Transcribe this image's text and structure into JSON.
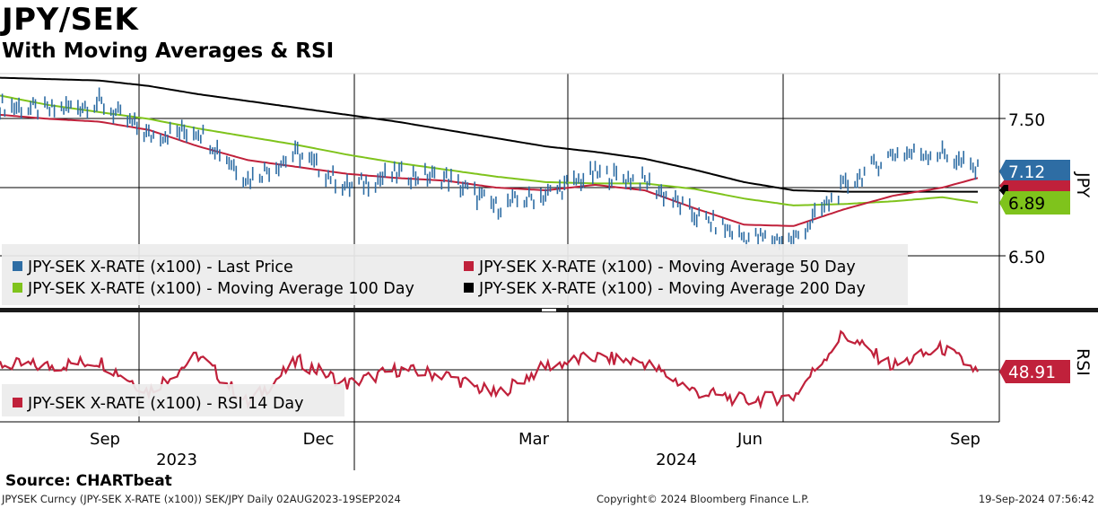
{
  "header": {
    "title": "JPY/SEK",
    "subtitle": "With Moving Averages & RSI"
  },
  "colors": {
    "last": "#2e6da4",
    "ma50": "#c0213b",
    "ma100": "#7fc31c",
    "ma200": "#000000",
    "rsi": "#c0213b"
  },
  "chart_data": [
    {
      "type": "line",
      "panel": "price",
      "y_axis_label": "JPY",
      "y_ticks": [
        6.5,
        7.5
      ],
      "y_tick_labels": [
        "6.50",
        "7.50"
      ],
      "ylim": [
        6.1,
        7.8
      ],
      "x": [
        "2023-08-02",
        "2023-08-23",
        "2023-09-13",
        "2023-10-04",
        "2023-10-25",
        "2023-11-15",
        "2023-12-06",
        "2023-12-27",
        "2024-01-17",
        "2024-02-07",
        "2024-02-28",
        "2024-03-20",
        "2024-04-10",
        "2024-05-01",
        "2024-05-22",
        "2024-06-12",
        "2024-07-03",
        "2024-07-24",
        "2024-08-14",
        "2024-09-04",
        "2024-09-19"
      ],
      "series": [
        {
          "name": "JPY-SEK X-RATE (x100) - Last Price",
          "key": "last",
          "values": [
            7.6,
            7.56,
            7.62,
            7.38,
            7.42,
            7.06,
            7.25,
            7.0,
            7.1,
            7.07,
            6.86,
            6.95,
            7.1,
            7.05,
            6.8,
            6.64,
            6.62,
            7.0,
            7.25,
            7.25,
            7.12
          ]
        },
        {
          "name": "JPY-SEK X-RATE (x100) - Moving Average 50 Day",
          "key": "ma50",
          "values": [
            7.53,
            7.5,
            7.48,
            7.42,
            7.3,
            7.2,
            7.15,
            7.1,
            7.07,
            7.05,
            7.0,
            6.98,
            7.02,
            6.98,
            6.85,
            6.73,
            6.72,
            6.84,
            6.94,
            7.0,
            7.07
          ]
        },
        {
          "name": "JPY-SEK X-RATE (x100) - Moving Average 100 Day",
          "key": "ma100",
          "values": [
            7.67,
            7.6,
            7.55,
            7.5,
            7.43,
            7.37,
            7.31,
            7.24,
            7.18,
            7.13,
            7.08,
            7.04,
            7.03,
            7.03,
            6.99,
            6.92,
            6.87,
            6.88,
            6.9,
            6.93,
            6.89
          ]
        },
        {
          "name": "JPY-SEK X-RATE (x100) - Moving Average 200 Day",
          "key": "ma200",
          "values": [
            7.8,
            7.79,
            7.78,
            7.74,
            7.68,
            7.63,
            7.58,
            7.53,
            7.48,
            7.42,
            7.36,
            7.3,
            7.26,
            7.21,
            7.13,
            7.04,
            6.98,
            6.97,
            6.97,
            6.97,
            6.97
          ]
        }
      ],
      "last_value_labels": [
        "7.12",
        "6.89"
      ],
      "legend_position": "bottom-left"
    },
    {
      "type": "line",
      "panel": "rsi",
      "y_axis_label": "RSI",
      "x": [
        "2023-08-02",
        "2023-08-23",
        "2023-09-13",
        "2023-10-04",
        "2023-10-25",
        "2023-11-15",
        "2023-12-06",
        "2023-12-27",
        "2024-01-17",
        "2024-02-07",
        "2024-02-28",
        "2024-03-20",
        "2024-04-10",
        "2024-05-01",
        "2024-05-22",
        "2024-06-12",
        "2024-07-03",
        "2024-07-24",
        "2024-08-14",
        "2024-09-04",
        "2024-09-19"
      ],
      "series": [
        {
          "name": "JPY-SEK X-RATE (x100) - RSI 14 Day",
          "key": "rsi",
          "values": [
            53,
            52,
            55,
            38,
            58,
            31,
            55,
            42,
            50,
            47,
            36,
            52,
            57,
            54,
            38,
            33,
            35,
            70,
            52,
            62,
            48.91
          ]
        }
      ],
      "last_value_labels": [
        "48.91"
      ],
      "ylim": [
        20,
        80
      ]
    }
  ],
  "x_axis": {
    "months": [
      "Sep",
      "Dec",
      "Mar",
      "Jun",
      "Sep"
    ],
    "years": [
      "2023",
      "2024"
    ]
  },
  "source": "Source: CHARTbeat",
  "footer": {
    "left": "JPYSEK Curncy (JPY-SEK X-RATE  (x100)) SEK/JPY  Daily 02AUG2023-19SEP2024",
    "mid": "Copyright© 2024 Bloomberg Finance L.P.",
    "right": "19-Sep-2024 07:56:42"
  }
}
